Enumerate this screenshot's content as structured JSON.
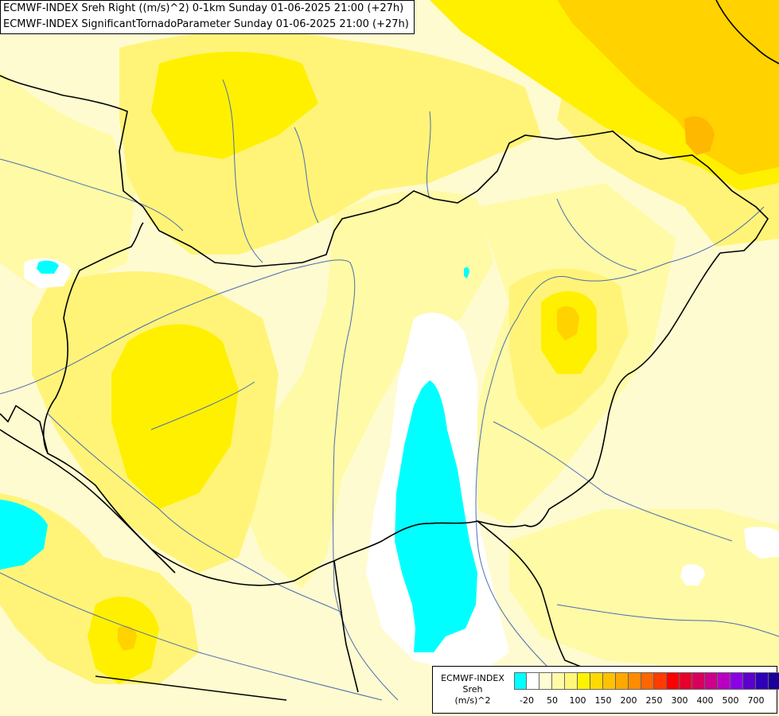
{
  "header": {
    "line1": "ECMWF-INDEX Sreh Right ((m/s)^2) 0-1km Sunday 01-06-2025 21:00 (+27h)",
    "line2": "ECMWF-INDEX SignificantTornadoParameter Sunday 01-06-2025 21:00 (+27h)"
  },
  "legend": {
    "title_line1": "ECMWF-INDEX",
    "title_line2": "Sreh",
    "title_line3": "(m/s)^2",
    "swatch_colors": [
      "#00ffff",
      "#ffffff",
      "#fffcd2",
      "#fffaa6",
      "#fff778",
      "#fff200",
      "#ffda00",
      "#ffc200",
      "#ffa800",
      "#ff8c00",
      "#ff6600",
      "#ff3b00",
      "#ff0000",
      "#e6002e",
      "#d6005c",
      "#cc008c",
      "#b800c2",
      "#8c00e6",
      "#5c00cc",
      "#2e00b8",
      "#1a0099",
      "#0a0066"
    ],
    "tick_labels": [
      "-20",
      "50",
      "100",
      "150",
      "200",
      "250",
      "300",
      "400",
      "500",
      "700"
    ]
  },
  "map_colors": {
    "background": "#fffbd0",
    "pale": "#fffaa6",
    "yellow": "#fff478",
    "bright": "#fff000",
    "orange": "#ffd200",
    "deep_orange": "#ffb800",
    "white": "#ffffff",
    "cyan": "#00ffff",
    "border": "#000000",
    "river": "#4d6bb3"
  }
}
